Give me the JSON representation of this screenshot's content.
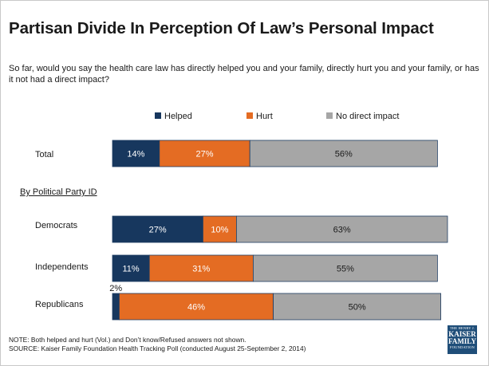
{
  "title": "Partisan Divide In Perception Of Law’s Personal Impact",
  "question": "So far, would you say the health care law has directly helped you and your family, directly hurt you and your family, or has it not had a direct impact?",
  "group_label": "By Political Party ID",
  "note": "NOTE: Both helped and hurt (Vol.) and Don’t know/Refused answers not shown.",
  "source": "SOURCE: Kaiser Family Foundation Health Tracking Poll (conducted August 25-September 2, 2014)",
  "logo": {
    "line1": "THE HENRY J.",
    "line2": "KAISER",
    "line3": "FAMILY",
    "line4": "FOUNDATION"
  },
  "chart_data": {
    "type": "bar",
    "orientation": "horizontal",
    "stacked": true,
    "categories": [
      "Total",
      "Democrats",
      "Independents",
      "Republicans"
    ],
    "series": [
      {
        "name": "Helped",
        "color": "#17375e",
        "values": [
          14,
          27,
          11,
          2
        ]
      },
      {
        "name": "Hurt",
        "color": "#e46c23",
        "values": [
          27,
          10,
          31,
          46
        ]
      },
      {
        "name": "No direct impact",
        "color": "#a6a6a6",
        "values": [
          56,
          63,
          55,
          50
        ]
      }
    ],
    "data_labels": [
      [
        "14%",
        "27%",
        "56%"
      ],
      [
        "27%",
        "10%",
        "63%"
      ],
      [
        "11%",
        "31%",
        "55%"
      ],
      [
        "2%",
        "46%",
        "50%"
      ]
    ],
    "legend_position": "top",
    "grid": false
  }
}
